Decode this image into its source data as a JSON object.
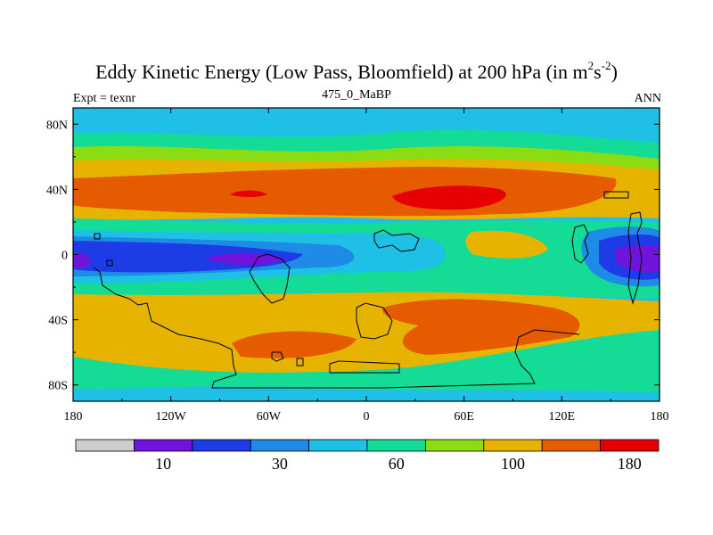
{
  "title": {
    "main": "Eddy Kinetic Energy (Low Pass, Bloomfield) at 200 hPa (in m",
    "sup1": "2",
    "mid": "s",
    "sup2": "-2",
    "tail": ")"
  },
  "subtitles": {
    "left": "Expt = texnr",
    "center": "475_0_MaBP",
    "right": "ANN"
  },
  "map": {
    "projection": "cylindrical equidistant",
    "lon_range": [
      -180,
      180
    ],
    "lat_range": [
      -90,
      90
    ],
    "x_ticks": [
      {
        "lon": -180,
        "label": "180"
      },
      {
        "lon": -120,
        "label": "120W"
      },
      {
        "lon": -60,
        "label": "60W"
      },
      {
        "lon": 0,
        "label": "0"
      },
      {
        "lon": 60,
        "label": "60E"
      },
      {
        "lon": 120,
        "label": "120E"
      },
      {
        "lon": 180,
        "label": "180"
      }
    ],
    "y_ticks": [
      {
        "lat": 80,
        "label": "80N"
      },
      {
        "lat": 40,
        "label": "40N"
      },
      {
        "lat": 0,
        "label": "0"
      },
      {
        "lat": -40,
        "label": "40S"
      },
      {
        "lat": -80,
        "label": "80S"
      }
    ],
    "contour_levels": [
      10,
      30,
      60,
      100,
      180
    ],
    "features": {
      "background_band": "mid-latitude EKE field",
      "nh_jet_max": "40N, 0-90E",
      "sh_jet_max": "35-45S, 40W-140E",
      "tropical_min_west": "0, 120W-60W",
      "tropical_min_east": "0, 150E-180E"
    }
  },
  "colorbar": {
    "colors": [
      "#cccccc",
      "#7014dc",
      "#1e3ce6",
      "#1e8ce6",
      "#1ec0e6",
      "#14dc96",
      "#8cdc14",
      "#e6b400",
      "#e65a00",
      "#e60000"
    ],
    "labels": [
      {
        "index": 2,
        "text": "10"
      },
      {
        "index": 4,
        "text": "30"
      },
      {
        "index": 6,
        "text": "60"
      },
      {
        "index": 8,
        "text": "100"
      },
      {
        "index": 10,
        "text": "180"
      }
    ]
  }
}
